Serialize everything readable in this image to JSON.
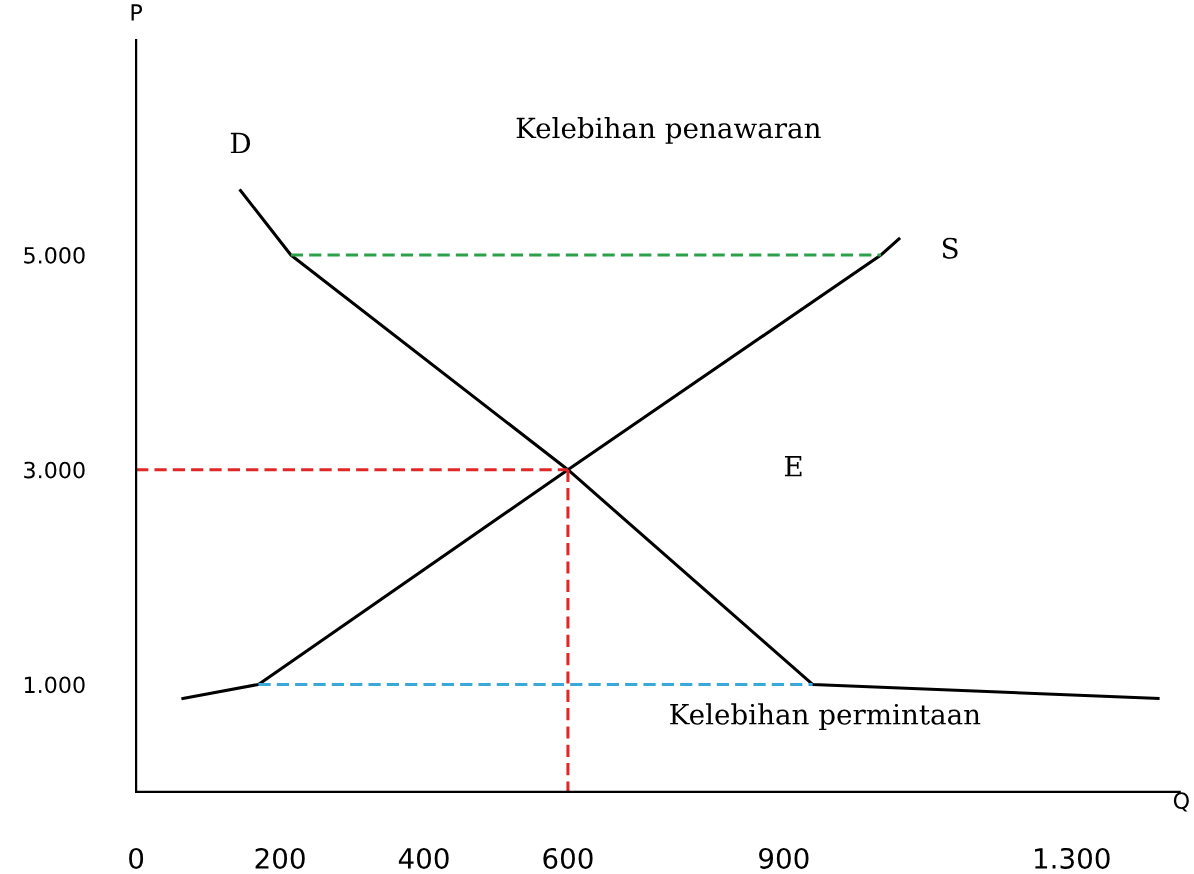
{
  "chart_data": {
    "type": "line",
    "xlabel": "Q",
    "ylabel": "P",
    "xlim": [
      0,
      1450
    ],
    "ylim": [
      0,
      7000
    ],
    "xticks": [
      0,
      200,
      400,
      600,
      900,
      {
        "value": 1300,
        "label": "1.300"
      }
    ],
    "yticks": [
      {
        "value": 1000,
        "label": "1.000"
      },
      {
        "value": 3000,
        "label": "3.000"
      },
      {
        "value": 5000,
        "label": "5.000"
      }
    ],
    "series": [
      {
        "color": "#000000",
        "x": [
          145,
          215,
          600,
          940,
          1420
        ],
        "values": [
          5600,
          5000,
          3000,
          1000,
          870
        ],
        "line_style": "solid"
      },
      {
        "color": "#000000",
        "x": [
          65,
          170,
          600,
          1035,
          1060
        ],
        "values": [
          870,
          1000,
          3000,
          5000,
          5150
        ],
        "line_style": "solid"
      },
      {
        "color": "#2ca04a",
        "x": [
          215,
          1035
        ],
        "values": [
          5000,
          5000
        ],
        "line_style": "dashed"
      },
      {
        "color": "#3aa8d8",
        "x": [
          170,
          940
        ],
        "values": [
          1000,
          1000
        ],
        "line_style": "dashed"
      },
      {
        "color": "#e02828",
        "x": [
          0,
          600
        ],
        "values": [
          3000,
          3000
        ],
        "line_style": "dashed"
      },
      {
        "color": "#e02828",
        "x": [
          600,
          600
        ],
        "values": [
          3000,
          0
        ],
        "line_style": "dashed"
      }
    ],
    "annotations": [
      "D",
      "S",
      "E",
      "Kelebihan penawaran",
      "Kelebihan permintaan"
    ],
    "grid": false,
    "legend": false
  }
}
